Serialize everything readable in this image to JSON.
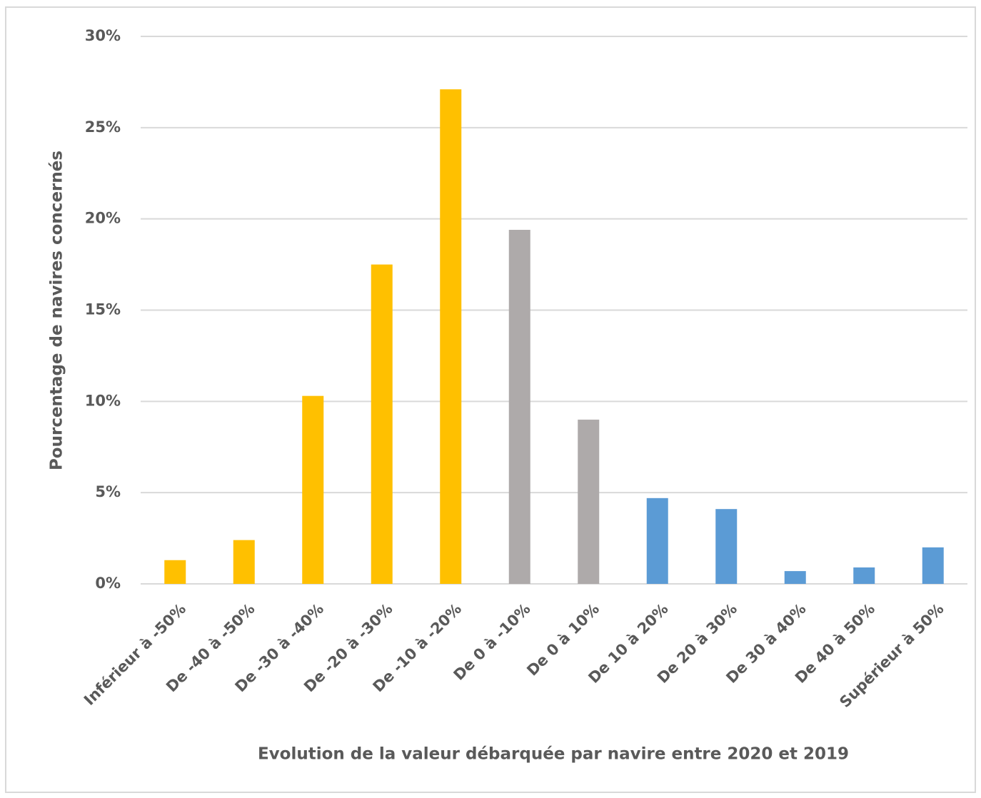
{
  "chart_data": {
    "type": "bar",
    "x_label": "Evolution de la valeur débarquée par navire entre 2020 et 2019",
    "y_label": "Pourcentage de navires concernés",
    "categories": [
      "Inférieur à -50%",
      "De -40 à -50%",
      "De -30 à -40%",
      "De -20 à -30%",
      "De -10 à -20%",
      "De 0 à -10%",
      "De 0 à 10%",
      "De 10 à 20%",
      "De 20 à 30%",
      "De 30 à 40%",
      "De 40 à 50%",
      "Supérieur à 50%"
    ],
    "values": [
      1.3,
      2.4,
      10.3,
      17.5,
      27.1,
      19.4,
      9.0,
      4.7,
      4.1,
      0.7,
      0.9,
      2.0
    ],
    "colors": [
      "#ffc000",
      "#ffc000",
      "#ffc000",
      "#ffc000",
      "#ffc000",
      "#aeaaaa",
      "#aeaaaa",
      "#5b9bd5",
      "#5b9bd5",
      "#5b9bd5",
      "#5b9bd5",
      "#5b9bd5"
    ],
    "ylim": [
      0,
      30
    ],
    "yticks": [
      {
        "value": 0,
        "label": "0%"
      },
      {
        "value": 5,
        "label": "5%"
      },
      {
        "value": 10,
        "label": "10%"
      },
      {
        "value": 15,
        "label": "15%"
      },
      {
        "value": 20,
        "label": "20%"
      },
      {
        "value": 25,
        "label": "25%"
      },
      {
        "value": 30,
        "label": "30%"
      }
    ],
    "grid": true
  }
}
